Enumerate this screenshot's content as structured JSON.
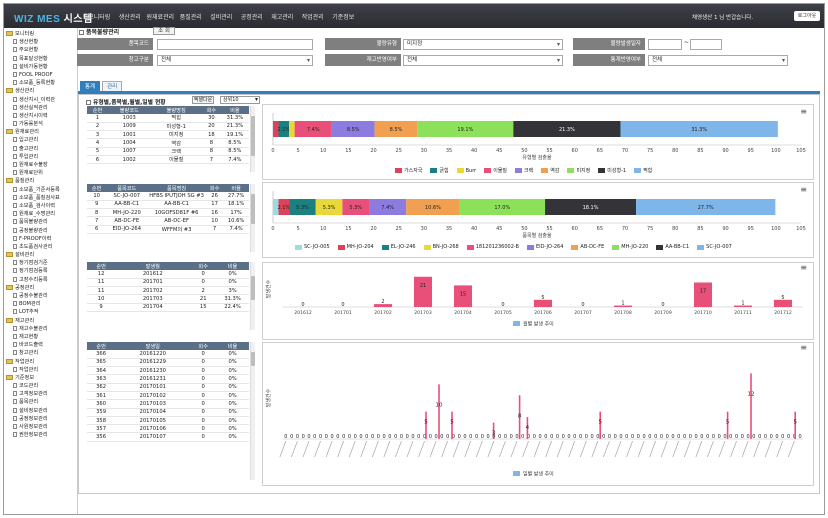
{
  "app": {
    "logo_a": "WIZ MES",
    "logo_b": "시스템",
    "user_text": "채영생산 1 님 반갑습니다.",
    "logout": "로그아웃"
  },
  "menu": [
    "모니터링",
    "생산관리",
    "원재료관리",
    "품질관리",
    "설비관리",
    "공정관리",
    "재고관리",
    "작업관리",
    "기준정보"
  ],
  "sidebar": [
    {
      "type": "grp",
      "label": "모니터링"
    },
    {
      "type": "leaf",
      "label": "생산현황"
    },
    {
      "type": "leaf",
      "label": "주요현황"
    },
    {
      "type": "leaf",
      "label": "목표달성현황"
    },
    {
      "type": "leaf",
      "label": "설비가동현황"
    },
    {
      "type": "leaf",
      "label": "FOOL PROOF"
    },
    {
      "type": "leaf",
      "label": "소모품_등록현황"
    },
    {
      "type": "grp",
      "label": "생산관리"
    },
    {
      "type": "leaf",
      "label": "생산지시_이력관"
    },
    {
      "type": "leaf",
      "label": "생산실적관리"
    },
    {
      "type": "leaf",
      "label": "생산지시이력"
    },
    {
      "type": "leaf",
      "label": "가동률분석"
    },
    {
      "type": "grp",
      "label": "원재료관리"
    },
    {
      "type": "leaf",
      "label": "입고관리"
    },
    {
      "type": "leaf",
      "label": "출고관리"
    },
    {
      "type": "leaf",
      "label": "투입관리"
    },
    {
      "type": "leaf",
      "label": "원재료수불장"
    },
    {
      "type": "leaf",
      "label": "원재료단위"
    },
    {
      "type": "grp",
      "label": "품질관리"
    },
    {
      "type": "leaf",
      "label": "소모품_기준서등록"
    },
    {
      "type": "leaf",
      "label": "소모품_품질검사표"
    },
    {
      "type": "leaf",
      "label": "소모품_검사이력"
    },
    {
      "type": "leaf",
      "label": "원재료_수명관리"
    },
    {
      "type": "leaf",
      "label": "품목불량관리"
    },
    {
      "type": "leaf",
      "label": "공정불량관리"
    },
    {
      "type": "leaf",
      "label": "F-PROOF이력"
    },
    {
      "type": "leaf",
      "label": "초도품검사관리"
    },
    {
      "type": "grp",
      "label": "설비관리"
    },
    {
      "type": "leaf",
      "label": "정기점검기준"
    },
    {
      "type": "leaf",
      "label": "정기점검등록"
    },
    {
      "type": "leaf",
      "label": "고장수리등록"
    },
    {
      "type": "grp",
      "label": "공정관리"
    },
    {
      "type": "leaf",
      "label": "공정수불관리"
    },
    {
      "type": "leaf",
      "label": "BOM관리"
    },
    {
      "type": "leaf",
      "label": "LOT추적"
    },
    {
      "type": "grp",
      "label": "재고관리"
    },
    {
      "type": "leaf",
      "label": "재고수불관리"
    },
    {
      "type": "leaf",
      "label": "재고현황"
    },
    {
      "type": "leaf",
      "label": "바코드출력"
    },
    {
      "type": "leaf",
      "label": "창고관리"
    },
    {
      "type": "grp",
      "label": "작업관리"
    },
    {
      "type": "leaf",
      "label": "작업관리"
    },
    {
      "type": "grp",
      "label": "기준정보"
    },
    {
      "type": "leaf",
      "label": "코드관리"
    },
    {
      "type": "leaf",
      "label": "고객정보관리"
    },
    {
      "type": "leaf",
      "label": "품목관리"
    },
    {
      "type": "leaf",
      "label": "설비정보관리"
    },
    {
      "type": "leaf",
      "label": "공정정보관리"
    },
    {
      "type": "leaf",
      "label": "사원정보관리"
    },
    {
      "type": "leaf",
      "label": "권한정보관리"
    }
  ],
  "search": {
    "title": "품목불량관리",
    "lookup": "조 회",
    "labels": {
      "item_code": "품목코드",
      "defect_type": "불량유형",
      "date": "불량발생일자",
      "warehouse": "창고구분",
      "stock_apply": "재고반영여부",
      "stats_apply": "통계반영여부"
    },
    "values": {
      "defect_type": "미지정",
      "warehouse": "전체",
      "stock_apply": "전체",
      "stats_apply": "전체",
      "date_sep": "~"
    }
  },
  "tabs": [
    "통계",
    "관리"
  ],
  "section": {
    "title": "유형별,품목별,월별,일별 현황",
    "excel": "엑셀다운",
    "topn": "상위10"
  },
  "table1": {
    "headers": [
      "순번",
      "불량코드",
      "불량명칭",
      "회수",
      "비율"
    ],
    "rows": [
      [
        "1",
        "1003",
        "찍힘",
        "30",
        "31.3%"
      ],
      [
        "2",
        "1009",
        "미성형-1",
        "20",
        "21.3%"
      ],
      [
        "3",
        "1001",
        "미지정",
        "18",
        "19.1%"
      ],
      [
        "4",
        "1004",
        "역감",
        "8",
        "8.5%"
      ],
      [
        "5",
        "1007",
        "크랙",
        "8",
        "8.5%"
      ],
      [
        "6",
        "1002",
        "이물질",
        "7",
        "7.4%"
      ]
    ]
  },
  "table2": {
    "headers": [
      "순번",
      "품목코드",
      "품목명칭",
      "회수",
      "비율"
    ],
    "rows": [
      [
        "10",
        "SC-JO-007",
        "HFBS IPUTJOH SG #3",
        "26",
        "27.7%"
      ],
      [
        "9",
        "AA-BB-C1",
        "AA-BB-C1",
        "17",
        "18.1%"
      ],
      [
        "8",
        "MH-JO-220",
        "10GOFSD81F #6",
        "16",
        "17%"
      ],
      [
        "7",
        "AB-DC-FE",
        "AB-DC-EF",
        "10",
        "10.6%"
      ],
      [
        "6",
        "EID-JO-264",
        "WFFM의 #3",
        "7",
        "7.4%"
      ]
    ]
  },
  "table3": {
    "headers": [
      "순번",
      "발생월",
      "회수",
      "비율"
    ],
    "rows": [
      [
        "12",
        "201612",
        "0",
        "0%"
      ],
      [
        "11",
        "201701",
        "0",
        "0%"
      ],
      [
        "11",
        "201702",
        "2",
        "3%"
      ],
      [
        "10",
        "201703",
        "21",
        "31.3%"
      ],
      [
        "9",
        "201704",
        "15",
        "22.4%"
      ]
    ]
  },
  "table4": {
    "headers": [
      "순번",
      "발생일",
      "회수",
      "비율"
    ],
    "rows": [
      [
        "366",
        "20161220",
        "0",
        "0%"
      ],
      [
        "365",
        "20161229",
        "0",
        "0%"
      ],
      [
        "364",
        "20161230",
        "0",
        "0%"
      ],
      [
        "363",
        "20161231",
        "0",
        "0%"
      ],
      [
        "362",
        "20170101",
        "0",
        "0%"
      ],
      [
        "361",
        "20170102",
        "0",
        "0%"
      ],
      [
        "360",
        "20170103",
        "0",
        "0%"
      ],
      [
        "359",
        "20170104",
        "0",
        "0%"
      ],
      [
        "358",
        "20170105",
        "0",
        "0%"
      ],
      [
        "357",
        "20170106",
        "0",
        "0%"
      ],
      [
        "356",
        "20170107",
        "0",
        "0%"
      ]
    ]
  },
  "chart_data": [
    {
      "type": "bar",
      "orientation": "horizontal",
      "stacked": true,
      "xlabel": "유형별 검출율",
      "xlim": [
        0,
        105
      ],
      "ticks": [
        0,
        5,
        10,
        15,
        20,
        25,
        30,
        35,
        40,
        45,
        50,
        55,
        60,
        65,
        70,
        75,
        80,
        85,
        90,
        95,
        100,
        105
      ],
      "series": [
        {
          "name": "가스자국",
          "value": 1.1,
          "label": "",
          "color": "#e0405a"
        },
        {
          "name": "긁힘",
          "value": 2.1,
          "label": "2.1%",
          "color": "#1a8080"
        },
        {
          "name": "Burr",
          "value": 1.1,
          "label": "",
          "color": "#e8d83a"
        },
        {
          "name": "이물질",
          "value": 7.4,
          "label": "7.4%",
          "color": "#e8507a"
        },
        {
          "name": "크랙",
          "value": 8.5,
          "label": "8.5%",
          "color": "#8d7be0"
        },
        {
          "name": "역감",
          "value": 8.5,
          "label": "8.5%",
          "color": "#f0a050"
        },
        {
          "name": "미지정",
          "value": 19.1,
          "label": "19.1%",
          "color": "#8de05a"
        },
        {
          "name": "미성형-1",
          "value": 21.3,
          "label": "21.3%",
          "color": "#333338"
        },
        {
          "name": "찍힘",
          "value": 31.3,
          "label": "31.3%",
          "color": "#7eb6ea"
        }
      ]
    },
    {
      "type": "bar",
      "orientation": "horizontal",
      "stacked": true,
      "xlabel": "품목별 검출율",
      "xlim": [
        0,
        105
      ],
      "ticks": [
        0,
        5,
        10,
        15,
        20,
        25,
        30,
        35,
        40,
        45,
        50,
        55,
        60,
        65,
        70,
        75,
        80,
        85,
        90,
        95,
        100,
        105
      ],
      "series": [
        {
          "name": "SC-JO-005",
          "value": 1.1,
          "label": "",
          "color": "#9adde0"
        },
        {
          "name": "MH-JO-204",
          "value": 2.1,
          "label": "2.1%",
          "color": "#e0405a"
        },
        {
          "name": "EL-JO-246",
          "value": 5.3,
          "label": "5.3%",
          "color": "#1a8080"
        },
        {
          "name": "BN-JO-268",
          "value": 5.3,
          "label": "5.3%",
          "color": "#e8d83a"
        },
        {
          "name": "181201236002-B",
          "value": 5.3,
          "label": "5.3%",
          "color": "#e8507a"
        },
        {
          "name": "EID-JO-264",
          "value": 7.4,
          "label": "7.4%",
          "color": "#8d7be0"
        },
        {
          "name": "AB-DC-FE",
          "value": 10.6,
          "label": "10.6%",
          "color": "#f0a050"
        },
        {
          "name": "MH-JO-220",
          "value": 17.0,
          "label": "17.0%",
          "color": "#8de05a"
        },
        {
          "name": "AA-BB-C1",
          "value": 18.1,
          "label": "18.1%",
          "color": "#333338"
        },
        {
          "name": "SC-JO-007",
          "value": 27.7,
          "label": "27.7%",
          "color": "#7eb6ea"
        }
      ]
    },
    {
      "type": "bar",
      "ylabel": "발생건수",
      "legend": "월별 발생 추이",
      "color": "#e8507a",
      "categories": [
        "201612",
        "201701",
        "201702",
        "201703",
        "201704",
        "201705",
        "201706",
        "201707",
        "201708",
        "201709",
        "201710",
        "201711",
        "201712"
      ],
      "values": [
        0,
        0,
        2,
        21,
        15,
        0,
        5,
        0,
        1,
        0,
        17,
        1,
        5
      ],
      "ylim": [
        0,
        25
      ]
    },
    {
      "type": "bar",
      "ylabel": "발생건수",
      "legend": "일별 발생 추이",
      "color": "#e8507a",
      "spikes": [
        {
          "pos": 0.275,
          "value": 5
        },
        {
          "pos": 0.3,
          "value": 10
        },
        {
          "pos": 0.325,
          "value": 5
        },
        {
          "pos": 0.405,
          "value": 3
        },
        {
          "pos": 0.455,
          "value": 8
        },
        {
          "pos": 0.47,
          "value": 4
        },
        {
          "pos": 0.61,
          "value": 5
        },
        {
          "pos": 0.855,
          "value": 5
        },
        {
          "pos": 0.9,
          "value": 12
        },
        {
          "pos": 0.985,
          "value": 5
        }
      ],
      "points": 90,
      "ylim": [
        0,
        15
      ]
    }
  ]
}
